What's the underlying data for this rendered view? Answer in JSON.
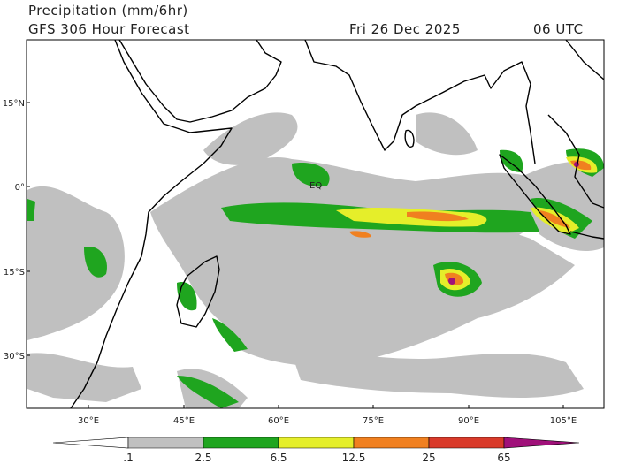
{
  "header": {
    "title": "Precipitation (mm/6hr)",
    "subtitle": "GFS 306 Hour Forecast",
    "date": "Fri 26 Dec 2025",
    "time": "06 UTC"
  },
  "map": {
    "lon_labels": [
      "30°E",
      "45°E",
      "60°E",
      "75°E",
      "90°E",
      "105°E"
    ],
    "lat_labels": [
      "15°N",
      "0°",
      "15°S",
      "30°S"
    ],
    "equator_label": "EQ"
  },
  "colorbar": {
    "labels": [
      ".1",
      "2.5",
      "6.5",
      "12.5",
      "25",
      "65"
    ],
    "colors": [
      "#ffffff",
      "#c0c0c0",
      "#1fa51f",
      "#e5ee2a",
      "#f08020",
      "#d93a2a",
      "#a0107a"
    ]
  }
}
